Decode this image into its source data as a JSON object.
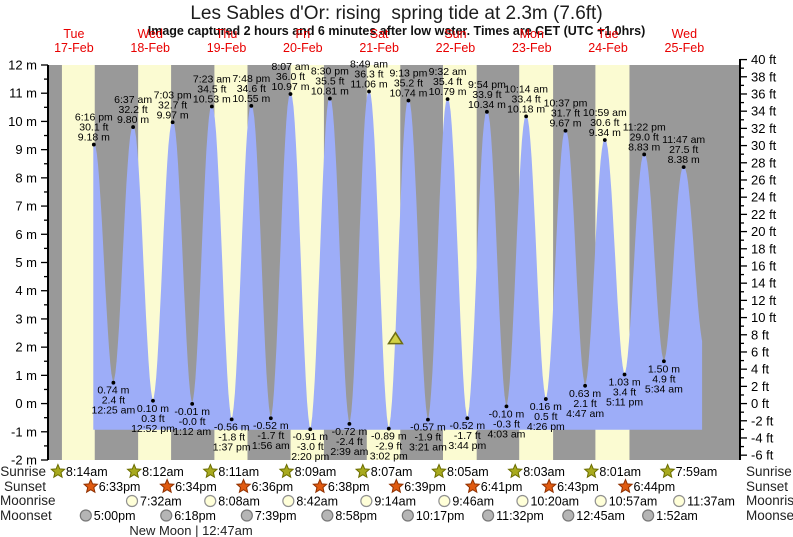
{
  "title": "Les Sables d'Or: rising  spring tide at 2.3m (7.6ft)",
  "subtitle": "Image captured 2 hours and 6 minutes after low water. Times are CET (UTC +1.0hrs)",
  "new_moon": {
    "label": "New Moon | 12:47am",
    "d": 2,
    "time": "12:47am"
  },
  "astro_labels": {
    "sunrise": "Sunrise",
    "sunset": "Sunset",
    "moonrise": "Moonrise",
    "moonset": "Moonset"
  },
  "colors": {
    "night_band": "#999999",
    "day_band": "#fbfbd2",
    "tide_fill": "#9dadf8",
    "day_label": "#e80000",
    "sunrise_star": "#a8aa1e",
    "sunrise_star_border": "#6b6d00",
    "sunset_star": "#e05a10",
    "sunset_star_border": "#8f3000",
    "moonrise_circle": "#ffffd8",
    "moonrise_circle_border": "#909090",
    "moonset_circle": "#b5b5b5",
    "moonset_circle_border": "#787878",
    "marker_fill": "#d2d245",
    "marker_border": "#6e6e12"
  },
  "chart_data": {
    "type": "area",
    "title": "Les Sables d'Or: rising  spring tide at 2.3m (7.6ft)",
    "y_axis_left": {
      "unit": "m",
      "min": -2,
      "max": 12,
      "label_step": 1,
      "minor_step": 0.5
    },
    "y_axis_right": {
      "unit": "ft",
      "min": -6,
      "max": 40,
      "label_step": 2,
      "minor_step": 1
    },
    "grid": false,
    "days": [
      {
        "weekday": "Tue",
        "date": "17-Feb",
        "sunrise": "8:14am",
        "sunset": "6:33pm",
        "moonrise": null,
        "moonset": "5:00pm"
      },
      {
        "weekday": "Wed",
        "date": "18-Feb",
        "sunrise": "8:12am",
        "sunset": "6:34pm",
        "moonrise": "7:32am",
        "moonset": "6:18pm"
      },
      {
        "weekday": "Thu",
        "date": "19-Feb",
        "sunrise": "8:11am",
        "sunset": "6:36pm",
        "moonrise": "8:08am",
        "moonset": "7:39pm"
      },
      {
        "weekday": "Fri",
        "date": "20-Feb",
        "sunrise": "8:09am",
        "sunset": "6:38pm",
        "moonrise": "8:42am",
        "moonset": "8:58pm"
      },
      {
        "weekday": "Sat",
        "date": "21-Feb",
        "sunrise": "8:07am",
        "sunset": "6:39pm",
        "moonrise": "9:14am",
        "moonset": "10:17pm"
      },
      {
        "weekday": "Sun",
        "date": "22-Feb",
        "sunrise": "8:05am",
        "sunset": "6:41pm",
        "moonrise": "9:46am",
        "moonset": "11:32pm"
      },
      {
        "weekday": "Mon",
        "date": "23-Feb",
        "sunrise": "8:03am",
        "sunset": "6:43pm",
        "moonrise": "10:20am",
        "moonset": null
      },
      {
        "weekday": "Tue",
        "date": "24-Feb",
        "sunrise": "8:01am",
        "sunset": "6:44pm",
        "moonrise": "10:57am",
        "moonset": "12:45am"
      },
      {
        "weekday": "Wed",
        "date": "25-Feb",
        "sunrise": "7:59am",
        "sunset": null,
        "moonrise": "11:37am",
        "moonset": "1:52am"
      }
    ],
    "events": [
      {
        "d": 0,
        "time": "6:16 pm",
        "ft": "30.1 ft",
        "m": "9.18 m",
        "height_m": 9.18,
        "type": "high"
      },
      {
        "d": 1,
        "time": "12:25 am",
        "ft": "2.4 ft",
        "m": "0.74 m",
        "height_m": 0.74,
        "type": "low"
      },
      {
        "d": 1,
        "time": "6:37 am",
        "ft": "32.2 ft",
        "m": "9.80 m",
        "height_m": 9.8,
        "type": "high"
      },
      {
        "d": 1,
        "time": "12:52 pm",
        "ft": "0.3 ft",
        "m": "0.10 m",
        "height_m": 0.1,
        "type": "low"
      },
      {
        "d": 1,
        "time": "7:03 pm",
        "ft": "32.7 ft",
        "m": "9.97 m",
        "height_m": 9.97,
        "type": "high"
      },
      {
        "d": 2,
        "time": "1:12 am",
        "ft": "-0.0 ft",
        "m": "-0.01 m",
        "height_m": -0.01,
        "type": "low"
      },
      {
        "d": 2,
        "time": "7:23 am",
        "ft": "34.5 ft",
        "m": "10.53 m",
        "height_m": 10.53,
        "type": "high"
      },
      {
        "d": 2,
        "time": "1:37 pm",
        "ft": "-1.8 ft",
        "m": "-0.56 m",
        "height_m": -0.56,
        "type": "low"
      },
      {
        "d": 2,
        "time": "7:48 pm",
        "ft": "34.6 ft",
        "m": "10.55 m",
        "height_m": 10.55,
        "type": "high"
      },
      {
        "d": 3,
        "time": "1:56 am",
        "ft": "-1.7 ft",
        "m": "-0.52 m",
        "height_m": -0.52,
        "type": "low"
      },
      {
        "d": 3,
        "time": "8:07 am",
        "ft": "36.0 ft",
        "m": "10.97 m",
        "height_m": 10.97,
        "type": "high"
      },
      {
        "d": 3,
        "time": "2:20 pm",
        "ft": "-3.0 ft",
        "m": "-0.91 m",
        "height_m": -0.91,
        "type": "low"
      },
      {
        "d": 3,
        "time": "8:30 pm",
        "ft": "35.5 ft",
        "m": "10.81 m",
        "height_m": 10.81,
        "type": "high"
      },
      {
        "d": 4,
        "time": "2:39 am",
        "ft": "-2.4 ft",
        "m": "-0.72 m",
        "height_m": -0.72,
        "type": "low"
      },
      {
        "d": 4,
        "time": "8:49 am",
        "ft": "36.3 ft",
        "m": "11.06 m",
        "height_m": 11.06,
        "type": "high"
      },
      {
        "d": 4,
        "time": "3:02 pm",
        "ft": "-2.9 ft",
        "m": "-0.89 m",
        "height_m": -0.89,
        "type": "low"
      },
      {
        "d": 4,
        "time": "9:13 pm",
        "ft": "35.2 ft",
        "m": "10.74 m",
        "height_m": 10.74,
        "type": "high"
      },
      {
        "d": 5,
        "time": "3:21 am",
        "ft": "-1.9 ft",
        "m": "-0.57 m",
        "height_m": -0.57,
        "type": "low"
      },
      {
        "d": 5,
        "time": "9:32 am",
        "ft": "35.4 ft",
        "m": "10.79 m",
        "height_m": 10.79,
        "type": "high"
      },
      {
        "d": 5,
        "time": "3:44 pm",
        "ft": "-1.7 ft",
        "m": "-0.52 m",
        "height_m": -0.52,
        "type": "low"
      },
      {
        "d": 5,
        "time": "9:54 pm",
        "ft": "33.9 ft",
        "m": "10.34 m",
        "height_m": 10.34,
        "type": "high"
      },
      {
        "d": 6,
        "time": "4:03 am",
        "ft": "-0.3 ft",
        "m": "-0.10 m",
        "height_m": -0.1,
        "type": "low"
      },
      {
        "d": 6,
        "time": "10:14 am",
        "ft": "33.4 ft",
        "m": "10.18 m",
        "height_m": 10.18,
        "type": "high"
      },
      {
        "d": 6,
        "time": "4:26 pm",
        "ft": "0.5 ft",
        "m": "0.16 m",
        "height_m": 0.16,
        "type": "low"
      },
      {
        "d": 6,
        "time": "10:37 pm",
        "ft": "31.7 ft",
        "m": "9.67 m",
        "height_m": 9.67,
        "type": "high"
      },
      {
        "d": 7,
        "time": "4:47 am",
        "ft": "2.1 ft",
        "m": "0.63 m",
        "height_m": 0.63,
        "type": "low"
      },
      {
        "d": 7,
        "time": "10:59 am",
        "ft": "30.6 ft",
        "m": "9.34 m",
        "height_m": 9.34,
        "type": "high"
      },
      {
        "d": 7,
        "time": "5:11 pm",
        "ft": "3.4 ft",
        "m": "1.03 m",
        "height_m": 1.03,
        "type": "low"
      },
      {
        "d": 7,
        "time": "11:22 pm",
        "ft": "29.0 ft",
        "m": "8.83 m",
        "height_m": 8.83,
        "type": "high"
      },
      {
        "d": 8,
        "time": "5:34 am",
        "ft": "4.9 ft",
        "m": "1.50 m",
        "height_m": 1.5,
        "type": "low"
      },
      {
        "d": 8,
        "time": "11:47 am",
        "ft": "27.5 ft",
        "m": "8.38 m",
        "height_m": 8.38,
        "type": "high"
      }
    ],
    "current_marker": {
      "d": 4,
      "time": "5:08pm",
      "height_m": 2.3
    },
    "curve_cutoff": {
      "d": 8,
      "time": "5:25pm",
      "taper_low": {
        "d": 8,
        "time": "6:10pm",
        "height_m": 2.0
      }
    },
    "legend": null
  }
}
